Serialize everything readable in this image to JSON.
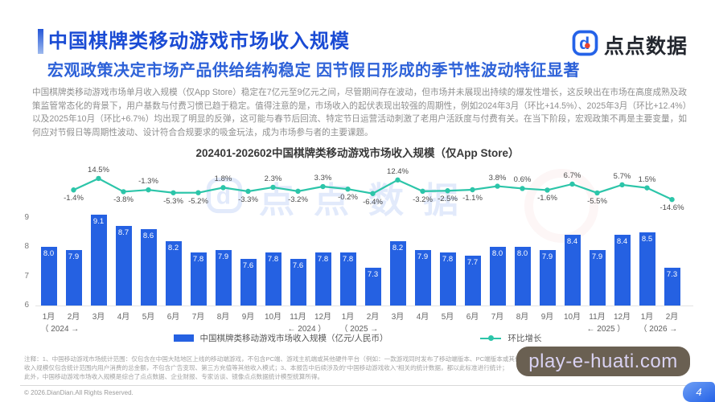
{
  "header": {
    "title": "中国棋牌类移动游戏市场收入规模",
    "subtitle": "宏观政策决定市场产品供给结构稳定 因节假日形成的季节性波动特征显著",
    "brand": "点点数据"
  },
  "body": {
    "paragraph": "中国棋牌类移动游戏市场单月收入规模（仅App Store）稳定在7亿元至9亿元之间，尽管期间存在波动，但市场并未展现出持续的爆发性增长，这反映出在市场在高度成熟及政策监管常态化的背景下，用户基数与付费习惯已趋于稳定。值得注意的是，市场收入的起伏表现出较强的周期性，例如2024年3月（环比+14.5%）、2025年3月（环比+12.4%）以及2025年10月（环比+6.7%）均出现了明显的反弹，这可能与春节后回流、特定节日运营活动刺激了老用户活跃度与付费有关。在当下阶段，宏观政策不再是主要变量，如何应对节假日等周期性波动、设计符合合规要求的吸金玩法，成为市场参与者的主要课题。"
  },
  "chart_data": {
    "type": "bar+line",
    "title": "202401-202602中国棋牌类移动游戏市场收入规模（仅App Store）",
    "categories": [
      "1月",
      "2月",
      "3月",
      "4月",
      "5月",
      "6月",
      "7月",
      "8月",
      "9月",
      "10月",
      "11月",
      "12月",
      "1月",
      "2月",
      "3月",
      "4月",
      "5月",
      "6月",
      "7月",
      "8月",
      "9月",
      "10月",
      "11月",
      "12月",
      "1月",
      "2月"
    ],
    "year_markers": [
      {
        "index": 0,
        "label": "（ 2024 →"
      },
      {
        "index": 11,
        "label": "← 2024 ）"
      },
      {
        "index": 12,
        "label": "（ 2025 →"
      },
      {
        "index": 23,
        "label": "← 2025 ）"
      },
      {
        "index": 24,
        "label": "（ 2026 →"
      }
    ],
    "series": [
      {
        "name": "中国棋牌类移动游戏市场收入规模（亿元/人民币）",
        "type": "bar",
        "color": "#2561e2",
        "values": [
          8.0,
          7.9,
          9.1,
          8.7,
          8.6,
          8.2,
          7.8,
          7.9,
          7.6,
          7.8,
          7.6,
          7.8,
          7.8,
          7.3,
          8.2,
          7.9,
          7.8,
          7.7,
          8.0,
          8.0,
          7.9,
          8.4,
          7.9,
          8.4,
          8.5,
          7.3
        ]
      },
      {
        "name": "环比增长",
        "type": "line",
        "color": "#2cc5a9",
        "values": [
          null,
          -1.4,
          14.5,
          -3.8,
          -1.3,
          -5.3,
          -5.2,
          1.8,
          -3.3,
          2.3,
          -3.2,
          3.3,
          -0.2,
          -6.4,
          12.4,
          -3.2,
          -2.5,
          -1.1,
          3.8,
          0.6,
          -1.6,
          6.7,
          -5.5,
          5.7,
          1.5,
          -14.6
        ]
      }
    ],
    "y_ticks": [
      9,
      8,
      7,
      6
    ],
    "ylim": [
      6,
      9.6
    ],
    "grid": false,
    "legend_position": "bottom",
    "watermark": "点点数据"
  },
  "footer": {
    "notes": [
      "注释：1、中国移动游戏市场统计范围：仅包含在中国大陆地区上线的移动端游戏，不包含PC端、游戏主机端或其他硬件平台（例如：一款游戏同时发布了移动端版本、PC端版本或其他端版本）；2、",
      "收入规模仅包含统计范围内用户消费的总金额，不包含广告变现、第三方充值等其他收入模式；3、本报告中后续涉及的“中国移动游戏收入”相关的统计数据，都以此标准进行统计；",
      "此外，中国移动游戏市场收入规模是综合了点点数据、企业财报、专家访谈、镜像点点数据统计模型统算所得。"
    ],
    "copyright": "© 2026.DianDian.All Rights Reserved.",
    "watermark_site": "play-e-huati.com",
    "page_number": "4"
  }
}
